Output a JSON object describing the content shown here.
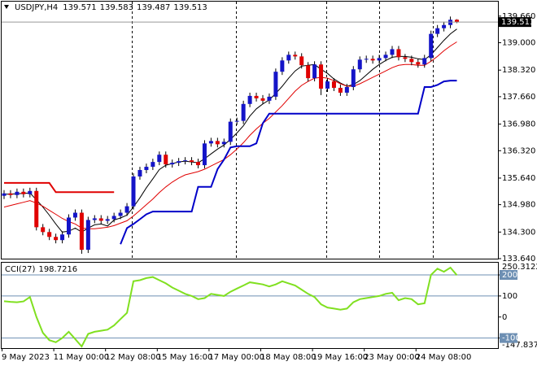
{
  "chart_data": [
    {
      "type": "candlestick",
      "title": "USDJPY,H4",
      "categories": [
        "9 May 2023",
        null,
        null,
        null,
        null,
        null,
        null,
        null,
        "11 May 00:00",
        null,
        null,
        null,
        null,
        null,
        null,
        null,
        "12 May 08:00",
        null,
        null,
        null,
        null,
        null,
        null,
        null,
        "15 May 16:00",
        null,
        null,
        null,
        null,
        null,
        null,
        null,
        "17 May 00:00",
        null,
        null,
        null,
        null,
        null,
        null,
        null,
        "18 May 08:00",
        null,
        null,
        null,
        null,
        null,
        null,
        null,
        "19 May 16:00",
        null,
        null,
        null,
        null,
        null,
        null,
        null,
        "23 May 00:00",
        null,
        null,
        null,
        null,
        null,
        null,
        null,
        "24 May 08:00",
        null,
        null,
        null,
        null,
        null,
        null
      ],
      "ohlc": [
        [
          135.2,
          135.34,
          135.12,
          135.26
        ],
        [
          135.26,
          135.34,
          135.14,
          135.22
        ],
        [
          135.22,
          135.38,
          135.14,
          135.3
        ],
        [
          135.3,
          135.38,
          135.16,
          135.24
        ],
        [
          135.24,
          135.4,
          135.16,
          135.32
        ],
        [
          135.32,
          135.4,
          134.34,
          134.42
        ],
        [
          134.42,
          134.5,
          134.22,
          134.3
        ],
        [
          134.3,
          134.38,
          134.1,
          134.18
        ],
        [
          134.18,
          134.26,
          134.02,
          134.1
        ],
        [
          134.1,
          134.32,
          134.02,
          134.24
        ],
        [
          134.24,
          134.74,
          134.16,
          134.66
        ],
        [
          134.66,
          134.86,
          134.58,
          134.78
        ],
        [
          134.78,
          134.86,
          133.76,
          133.86
        ],
        [
          133.86,
          134.68,
          133.78,
          134.6
        ],
        [
          134.6,
          134.72,
          134.52,
          134.64
        ],
        [
          134.64,
          134.72,
          134.5,
          134.58
        ],
        [
          134.58,
          134.7,
          134.5,
          134.62
        ],
        [
          134.62,
          134.78,
          134.54,
          134.7
        ],
        [
          134.7,
          134.86,
          134.62,
          134.78
        ],
        [
          134.78,
          135.02,
          134.7,
          134.94
        ],
        [
          134.94,
          135.76,
          134.86,
          135.68
        ],
        [
          135.68,
          135.92,
          135.6,
          135.84
        ],
        [
          135.84,
          136.0,
          135.76,
          135.92
        ],
        [
          135.92,
          136.12,
          135.84,
          136.04
        ],
        [
          136.04,
          136.3,
          135.96,
          136.22
        ],
        [
          136.22,
          136.3,
          135.9,
          135.98
        ],
        [
          135.98,
          136.1,
          135.9,
          136.02
        ],
        [
          136.02,
          136.14,
          135.94,
          136.06
        ],
        [
          136.06,
          136.16,
          135.98,
          136.08
        ],
        [
          136.08,
          136.16,
          135.96,
          136.04
        ],
        [
          136.04,
          136.12,
          135.88,
          135.96
        ],
        [
          135.96,
          136.58,
          135.88,
          136.5
        ],
        [
          136.5,
          136.64,
          136.42,
          136.56
        ],
        [
          136.56,
          136.64,
          136.4,
          136.48
        ],
        [
          136.48,
          136.62,
          136.4,
          136.54
        ],
        [
          136.54,
          137.12,
          136.46,
          137.04
        ],
        [
          137.04,
          137.14,
          136.96,
          137.06
        ],
        [
          137.06,
          137.56,
          136.98,
          137.48
        ],
        [
          137.48,
          137.76,
          137.4,
          137.68
        ],
        [
          137.68,
          137.76,
          137.54,
          137.62
        ],
        [
          137.62,
          137.7,
          137.48,
          137.56
        ],
        [
          137.56,
          137.74,
          137.48,
          137.66
        ],
        [
          137.66,
          138.36,
          137.58,
          138.28
        ],
        [
          138.28,
          138.64,
          138.2,
          138.56
        ],
        [
          138.56,
          138.78,
          138.48,
          138.7
        ],
        [
          138.7,
          138.78,
          138.58,
          138.66
        ],
        [
          138.66,
          138.74,
          138.36,
          138.44
        ],
        [
          138.44,
          138.52,
          138.04,
          138.12
        ],
        [
          138.12,
          138.54,
          138.04,
          138.46
        ],
        [
          138.46,
          138.54,
          137.7,
          137.86
        ],
        [
          137.86,
          138.12,
          137.78,
          138.04
        ],
        [
          138.04,
          138.12,
          137.8,
          137.88
        ],
        [
          137.88,
          137.96,
          137.68,
          137.76
        ],
        [
          137.76,
          137.98,
          137.68,
          137.9
        ],
        [
          137.9,
          138.42,
          137.82,
          138.34
        ],
        [
          138.34,
          138.66,
          138.26,
          138.58
        ],
        [
          138.58,
          138.68,
          138.5,
          138.6
        ],
        [
          138.6,
          138.68,
          138.48,
          138.56
        ],
        [
          138.56,
          138.7,
          138.48,
          138.62
        ],
        [
          138.62,
          138.78,
          138.54,
          138.7
        ],
        [
          138.7,
          138.92,
          138.62,
          138.84
        ],
        [
          138.84,
          138.92,
          138.56,
          138.64
        ],
        [
          138.64,
          138.72,
          138.52,
          138.6
        ],
        [
          138.6,
          138.68,
          138.44,
          138.52
        ],
        [
          138.52,
          138.6,
          138.38,
          138.46
        ],
        [
          138.46,
          138.7,
          138.38,
          138.62
        ],
        [
          138.62,
          139.3,
          138.54,
          139.22
        ],
        [
          139.22,
          139.44,
          139.14,
          139.36
        ],
        [
          139.36,
          139.52,
          139.28,
          139.44
        ],
        [
          139.44,
          139.65,
          139.36,
          139.57
        ],
        [
          139.571,
          139.583,
          139.487,
          139.513
        ]
      ],
      "up_color": "#1414c8",
      "down_color": "#e00000",
      "lines": [
        {
          "color": "#000000",
          "values": [
            135.24,
            135.24,
            135.25,
            135.26,
            135.27,
            135.1,
            134.92,
            134.72,
            134.5,
            134.3,
            134.32,
            134.4,
            134.3,
            134.4,
            134.48,
            134.5,
            134.45,
            134.6,
            134.65,
            134.72,
            134.92,
            135.15,
            135.4,
            135.62,
            135.85,
            135.96,
            136.0,
            136.04,
            136.06,
            136.04,
            136.02,
            136.12,
            136.24,
            136.36,
            136.46,
            136.6,
            136.76,
            136.94,
            137.18,
            137.36,
            137.48,
            137.58,
            137.74,
            137.92,
            138.12,
            138.3,
            138.42,
            138.44,
            138.46,
            138.34,
            138.24,
            138.1,
            138.0,
            137.92,
            137.96,
            138.06,
            138.2,
            138.34,
            138.46,
            138.56,
            138.64,
            138.66,
            138.66,
            138.64,
            138.6,
            138.58,
            138.7,
            138.88,
            139.06,
            139.22,
            139.34
          ]
        },
        {
          "color": "#e00000",
          "values": [
            134.92,
            134.96,
            135.0,
            135.04,
            135.08,
            135.02,
            134.94,
            134.84,
            134.74,
            134.64,
            134.56,
            134.5,
            134.4,
            134.38,
            134.38,
            134.4,
            134.42,
            134.46,
            134.52,
            134.58,
            134.7,
            134.84,
            134.98,
            135.12,
            135.28,
            135.42,
            135.54,
            135.64,
            135.72,
            135.76,
            135.8,
            135.86,
            135.94,
            136.02,
            136.1,
            136.22,
            136.36,
            136.52,
            136.7,
            136.86,
            137.0,
            137.12,
            137.28,
            137.44,
            137.62,
            137.8,
            137.94,
            138.04,
            138.12,
            138.14,
            138.12,
            138.06,
            137.98,
            137.92,
            137.92,
            137.98,
            138.06,
            138.14,
            138.22,
            138.3,
            138.38,
            138.44,
            138.46,
            138.46,
            138.44,
            138.44,
            138.54,
            138.66,
            138.8,
            138.92,
            139.02
          ]
        },
        {
          "color": "#0000c8",
          "values": [
            null,
            null,
            null,
            null,
            null,
            null,
            null,
            null,
            null,
            null,
            null,
            null,
            null,
            null,
            null,
            null,
            null,
            null,
            134.0,
            134.4,
            134.5,
            134.62,
            134.74,
            134.81,
            134.81,
            134.81,
            134.81,
            134.81,
            134.81,
            134.81,
            135.42,
            135.42,
            135.42,
            135.86,
            136.1,
            136.4,
            136.43,
            136.43,
            136.43,
            136.5,
            137.0,
            137.24,
            137.24,
            137.24,
            137.24,
            137.24,
            137.24,
            137.24,
            137.24,
            137.24,
            137.24,
            137.24,
            137.24,
            137.24,
            137.24,
            137.24,
            137.24,
            137.24,
            137.24,
            137.24,
            137.24,
            137.24,
            137.24,
            137.24,
            137.24,
            137.9,
            137.9,
            137.95,
            138.04,
            138.06,
            138.06
          ]
        },
        {
          "color": "#e00000",
          "values": [
            135.52,
            135.52,
            135.52,
            135.52,
            135.52,
            135.52,
            135.52,
            135.52,
            135.29,
            135.29,
            135.29,
            135.29,
            135.29,
            135.29,
            135.29,
            135.29,
            135.29,
            135.29,
            null,
            null,
            null,
            null,
            null,
            null,
            null,
            null,
            null,
            null,
            null,
            null,
            null,
            null,
            null,
            null,
            null,
            null,
            null,
            null,
            null,
            null,
            null,
            null,
            null,
            null,
            null,
            null,
            null,
            null,
            null,
            null,
            null,
            null,
            null,
            null,
            null,
            null,
            null,
            null,
            null,
            null,
            null,
            null,
            null,
            null,
            null,
            null,
            null,
            null,
            null,
            null,
            null
          ]
        }
      ],
      "ylim": [
        133.64,
        140.0
      ],
      "yticks": [
        {
          "value": 139.66,
          "label": "139.660"
        },
        {
          "value": 139,
          "label": "139.000"
        },
        {
          "value": 138.32,
          "label": "138.320"
        },
        {
          "value": 137.66,
          "label": "137.660"
        },
        {
          "value": 136.98,
          "label": "136.980"
        },
        {
          "value": 136.32,
          "label": "136.320"
        },
        {
          "value": 135.64,
          "label": "135.640"
        },
        {
          "value": 134.98,
          "label": "134.980"
        },
        {
          "value": 134.3,
          "label": "134.300"
        },
        {
          "value": 133.64,
          "label": "133.640"
        }
      ]
    },
    {
      "type": "line",
      "title": "CCI(27)",
      "color": "#80e020",
      "values": [
        75,
        72,
        70,
        74,
        95,
        0,
        -75,
        -110,
        -120,
        -100,
        -70,
        -105,
        -140,
        -80,
        -70,
        -65,
        -60,
        -40,
        -10,
        20,
        170,
        175,
        185,
        190,
        175,
        160,
        140,
        125,
        110,
        100,
        85,
        90,
        110,
        105,
        100,
        120,
        135,
        150,
        165,
        160,
        155,
        145,
        155,
        170,
        160,
        150,
        130,
        110,
        95,
        60,
        45,
        40,
        35,
        40,
        70,
        85,
        90,
        95,
        100,
        110,
        115,
        80,
        90,
        85,
        60,
        65,
        200,
        230,
        215,
        235,
        198.7216
      ],
      "ylim": [
        -147.8372,
        250.3122
      ],
      "yticks": [
        200,
        100,
        0,
        -100
      ],
      "levels": [
        200,
        100,
        -100
      ],
      "level_color": "#6d8fb3"
    }
  ]
}
